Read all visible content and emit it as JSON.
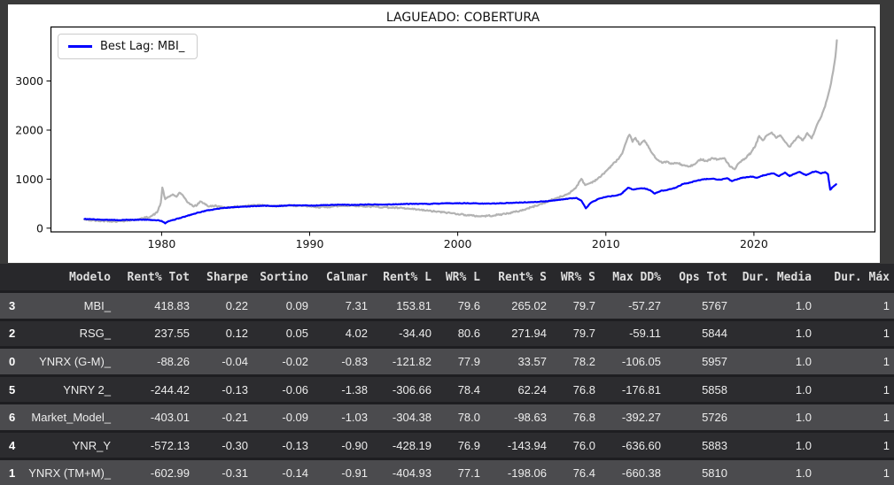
{
  "colors": {
    "page_bg": "#3a3a3a",
    "figure_bg": "#ffffff",
    "line_blue": "#0000ff",
    "line_gray": "#b3b3b3",
    "table_header_bg": "#28282b",
    "table_row_light": "#4b4b4e",
    "table_row_dark": "#2c2c2f",
    "table_text": "#ececec"
  },
  "chart_data": {
    "type": "line",
    "title": "LAGUEADO: COBERTURA",
    "xlabel": "",
    "ylabel": "",
    "legend_position": "upper left",
    "grid": false,
    "x_ticks": [
      1980,
      1990,
      2000,
      2010,
      2020
    ],
    "y_ticks": [
      0,
      1000,
      2000,
      3000
    ],
    "xlim": [
      1972.5,
      2028.2
    ],
    "ylim": [
      -75,
      4110
    ],
    "series": [
      {
        "name": "Best Lag: MBI_",
        "color": "#0000ff",
        "in_legend": true,
        "points": [
          [
            1974.8,
            188
          ],
          [
            1975.5,
            178
          ],
          [
            1976.2,
            170
          ],
          [
            1977.0,
            166
          ],
          [
            1977.8,
            170
          ],
          [
            1978.5,
            174
          ],
          [
            1979.2,
            172
          ],
          [
            1979.7,
            162
          ],
          [
            1980.0,
            148
          ],
          [
            1980.25,
            98
          ],
          [
            1980.5,
            145
          ],
          [
            1980.8,
            168
          ],
          [
            1981.2,
            205
          ],
          [
            1981.7,
            248
          ],
          [
            1982.2,
            295
          ],
          [
            1982.7,
            335
          ],
          [
            1983.2,
            368
          ],
          [
            1983.7,
            392
          ],
          [
            1984.2,
            412
          ],
          [
            1984.8,
            428
          ],
          [
            1985.5,
            438
          ],
          [
            1986.2,
            448
          ],
          [
            1987.0,
            458
          ],
          [
            1987.8,
            452
          ],
          [
            1988.5,
            462
          ],
          [
            1989.2,
            466
          ],
          [
            1990.0,
            460
          ],
          [
            1991.0,
            470
          ],
          [
            1992.0,
            478
          ],
          [
            1993.0,
            474
          ],
          [
            1994.0,
            484
          ],
          [
            1995.0,
            480
          ],
          [
            1996.0,
            490
          ],
          [
            1997.0,
            498
          ],
          [
            1998.0,
            494
          ],
          [
            1999.0,
            504
          ],
          [
            2000.0,
            510
          ],
          [
            2001.0,
            506
          ],
          [
            2002.0,
            500
          ],
          [
            2003.0,
            510
          ],
          [
            2004.0,
            520
          ],
          [
            2005.0,
            532
          ],
          [
            2006.0,
            548
          ],
          [
            2006.8,
            578
          ],
          [
            2007.5,
            605
          ],
          [
            2008.0,
            618
          ],
          [
            2008.35,
            560
          ],
          [
            2008.65,
            405
          ],
          [
            2009.0,
            520
          ],
          [
            2009.5,
            598
          ],
          [
            2010.0,
            638
          ],
          [
            2010.5,
            658
          ],
          [
            2011.0,
            688
          ],
          [
            2011.5,
            825
          ],
          [
            2011.8,
            790
          ],
          [
            2012.2,
            805
          ],
          [
            2012.6,
            815
          ],
          [
            2013.0,
            775
          ],
          [
            2013.3,
            705
          ],
          [
            2013.7,
            760
          ],
          [
            2014.2,
            785
          ],
          [
            2014.7,
            825
          ],
          [
            2015.2,
            900
          ],
          [
            2015.7,
            930
          ],
          [
            2016.2,
            975
          ],
          [
            2016.7,
            1000
          ],
          [
            2017.2,
            1008
          ],
          [
            2017.7,
            988
          ],
          [
            2018.2,
            1018
          ],
          [
            2018.5,
            958
          ],
          [
            2018.9,
            1002
          ],
          [
            2019.3,
            1032
          ],
          [
            2019.8,
            1052
          ],
          [
            2020.2,
            1028
          ],
          [
            2020.5,
            1065
          ],
          [
            2020.9,
            1095
          ],
          [
            2021.3,
            1118
          ],
          [
            2021.7,
            1062
          ],
          [
            2022.1,
            1135
          ],
          [
            2022.4,
            1062
          ],
          [
            2022.8,
            1118
          ],
          [
            2023.1,
            1148
          ],
          [
            2023.5,
            1082
          ],
          [
            2023.9,
            1138
          ],
          [
            2024.2,
            1158
          ],
          [
            2024.5,
            1118
          ],
          [
            2024.8,
            1142
          ],
          [
            2025.0,
            1100
          ],
          [
            2025.15,
            785
          ],
          [
            2025.35,
            845
          ],
          [
            2025.55,
            895
          ]
        ]
      },
      {
        "name": "",
        "color": "#b3b3b3",
        "in_legend": false,
        "points": [
          [
            1974.8,
            175
          ],
          [
            1975.3,
            158
          ],
          [
            1975.8,
            148
          ],
          [
            1976.3,
            152
          ],
          [
            1976.8,
            138
          ],
          [
            1977.3,
            148
          ],
          [
            1977.8,
            158
          ],
          [
            1978.3,
            172
          ],
          [
            1978.8,
            205
          ],
          [
            1979.3,
            245
          ],
          [
            1979.7,
            320
          ],
          [
            1979.95,
            520
          ],
          [
            1980.05,
            830
          ],
          [
            1980.25,
            590
          ],
          [
            1980.5,
            640
          ],
          [
            1980.75,
            690
          ],
          [
            1981.0,
            640
          ],
          [
            1981.2,
            725
          ],
          [
            1981.5,
            640
          ],
          [
            1981.8,
            520
          ],
          [
            1982.1,
            450
          ],
          [
            1982.4,
            470
          ],
          [
            1982.6,
            545
          ],
          [
            1982.9,
            505
          ],
          [
            1983.2,
            440
          ],
          [
            1983.6,
            460
          ],
          [
            1984.0,
            430
          ],
          [
            1984.5,
            425
          ],
          [
            1985.0,
            435
          ],
          [
            1985.5,
            450
          ],
          [
            1986.0,
            465
          ],
          [
            1986.5,
            478
          ],
          [
            1987.0,
            470
          ],
          [
            1987.5,
            445
          ],
          [
            1988.0,
            452
          ],
          [
            1988.5,
            460
          ],
          [
            1989.0,
            462
          ],
          [
            1989.5,
            450
          ],
          [
            1990.0,
            442
          ],
          [
            1990.5,
            432
          ],
          [
            1991.0,
            428
          ],
          [
            1991.5,
            442
          ],
          [
            1992.0,
            452
          ],
          [
            1992.5,
            458
          ],
          [
            1993.0,
            462
          ],
          [
            1993.5,
            452
          ],
          [
            1994.0,
            442
          ],
          [
            1994.5,
            436
          ],
          [
            1995.0,
            430
          ],
          [
            1995.5,
            420
          ],
          [
            1996.0,
            412
          ],
          [
            1996.5,
            400
          ],
          [
            1997.0,
            385
          ],
          [
            1997.5,
            372
          ],
          [
            1998.0,
            355
          ],
          [
            1998.5,
            340
          ],
          [
            1999.0,
            325
          ],
          [
            1999.5,
            310
          ],
          [
            2000.0,
            292
          ],
          [
            2000.5,
            272
          ],
          [
            2001.0,
            255
          ],
          [
            2001.5,
            245
          ],
          [
            2002.0,
            252
          ],
          [
            2002.5,
            262
          ],
          [
            2003.0,
            285
          ],
          [
            2003.5,
            310
          ],
          [
            2004.0,
            340
          ],
          [
            2004.5,
            380
          ],
          [
            2005.0,
            430
          ],
          [
            2005.5,
            480
          ],
          [
            2006.0,
            530
          ],
          [
            2006.4,
            585
          ],
          [
            2006.8,
            625
          ],
          [
            2007.2,
            665
          ],
          [
            2007.6,
            730
          ],
          [
            2008.0,
            840
          ],
          [
            2008.35,
            1005
          ],
          [
            2008.6,
            880
          ],
          [
            2008.9,
            915
          ],
          [
            2009.2,
            960
          ],
          [
            2009.6,
            1040
          ],
          [
            2010.0,
            1160
          ],
          [
            2010.4,
            1280
          ],
          [
            2010.8,
            1400
          ],
          [
            2011.1,
            1520
          ],
          [
            2011.4,
            1780
          ],
          [
            2011.6,
            1905
          ],
          [
            2011.8,
            1760
          ],
          [
            2012.0,
            1840
          ],
          [
            2012.3,
            1700
          ],
          [
            2012.6,
            1790
          ],
          [
            2012.9,
            1640
          ],
          [
            2013.2,
            1500
          ],
          [
            2013.5,
            1390
          ],
          [
            2013.8,
            1330
          ],
          [
            2014.1,
            1360
          ],
          [
            2014.4,
            1310
          ],
          [
            2014.8,
            1330
          ],
          [
            2015.2,
            1285
          ],
          [
            2015.6,
            1255
          ],
          [
            2016.0,
            1300
          ],
          [
            2016.4,
            1410
          ],
          [
            2016.8,
            1370
          ],
          [
            2017.2,
            1430
          ],
          [
            2017.6,
            1400
          ],
          [
            2018.0,
            1430
          ],
          [
            2018.4,
            1250
          ],
          [
            2018.7,
            1200
          ],
          [
            2019.0,
            1330
          ],
          [
            2019.4,
            1420
          ],
          [
            2019.8,
            1540
          ],
          [
            2020.1,
            1680
          ],
          [
            2020.35,
            1880
          ],
          [
            2020.6,
            1790
          ],
          [
            2020.9,
            1900
          ],
          [
            2021.2,
            1950
          ],
          [
            2021.5,
            1840
          ],
          [
            2021.8,
            1890
          ],
          [
            2022.1,
            1760
          ],
          [
            2022.4,
            1660
          ],
          [
            2022.7,
            1780
          ],
          [
            2023.0,
            1880
          ],
          [
            2023.3,
            1790
          ],
          [
            2023.6,
            1940
          ],
          [
            2023.9,
            1830
          ],
          [
            2024.2,
            2060
          ],
          [
            2024.5,
            2250
          ],
          [
            2024.8,
            2480
          ],
          [
            2025.0,
            2700
          ],
          [
            2025.2,
            2950
          ],
          [
            2025.35,
            3200
          ],
          [
            2025.5,
            3500
          ],
          [
            2025.6,
            3830
          ]
        ]
      }
    ]
  },
  "table": {
    "index_header": "",
    "columns": [
      "Modelo",
      "Rent% Tot",
      "Sharpe",
      "Sortino",
      "Calmar",
      "Rent% L",
      "WR% L",
      "Rent% S",
      "WR% S",
      "Max DD%",
      "Ops Tot",
      "Dur. Media",
      "Dur. Máx"
    ],
    "rows": [
      {
        "index": "3",
        "cells": [
          "MBI_",
          "418.83",
          "0.22",
          "0.09",
          "7.31",
          "153.81",
          "79.6",
          "265.02",
          "79.7",
          "-57.27",
          "5767",
          "1.0",
          "1"
        ]
      },
      {
        "index": "2",
        "cells": [
          "RSG_",
          "237.55",
          "0.12",
          "0.05",
          "4.02",
          "-34.40",
          "80.6",
          "271.94",
          "79.7",
          "-59.11",
          "5844",
          "1.0",
          "1"
        ]
      },
      {
        "index": "0",
        "cells": [
          "YNRX (G-M)_",
          "-88.26",
          "-0.04",
          "-0.02",
          "-0.83",
          "-121.82",
          "77.9",
          "33.57",
          "78.2",
          "-106.05",
          "5957",
          "1.0",
          "1"
        ]
      },
      {
        "index": "5",
        "cells": [
          "YNRY 2_",
          "-244.42",
          "-0.13",
          "-0.06",
          "-1.38",
          "-306.66",
          "78.4",
          "62.24",
          "76.8",
          "-176.81",
          "5858",
          "1.0",
          "1"
        ]
      },
      {
        "index": "6",
        "cells": [
          "Market_Model_",
          "-403.01",
          "-0.21",
          "-0.09",
          "-1.03",
          "-304.38",
          "78.0",
          "-98.63",
          "76.8",
          "-392.27",
          "5726",
          "1.0",
          "1"
        ]
      },
      {
        "index": "4",
        "cells": [
          "YNR_Y",
          "-572.13",
          "-0.30",
          "-0.13",
          "-0.90",
          "-428.19",
          "76.9",
          "-143.94",
          "76.0",
          "-636.60",
          "5883",
          "1.0",
          "1"
        ]
      },
      {
        "index": "1",
        "cells": [
          "YNRX (TM+M)_",
          "-602.99",
          "-0.31",
          "-0.14",
          "-0.91",
          "-404.93",
          "77.1",
          "-198.06",
          "76.4",
          "-660.38",
          "5810",
          "1.0",
          "1"
        ]
      }
    ]
  }
}
